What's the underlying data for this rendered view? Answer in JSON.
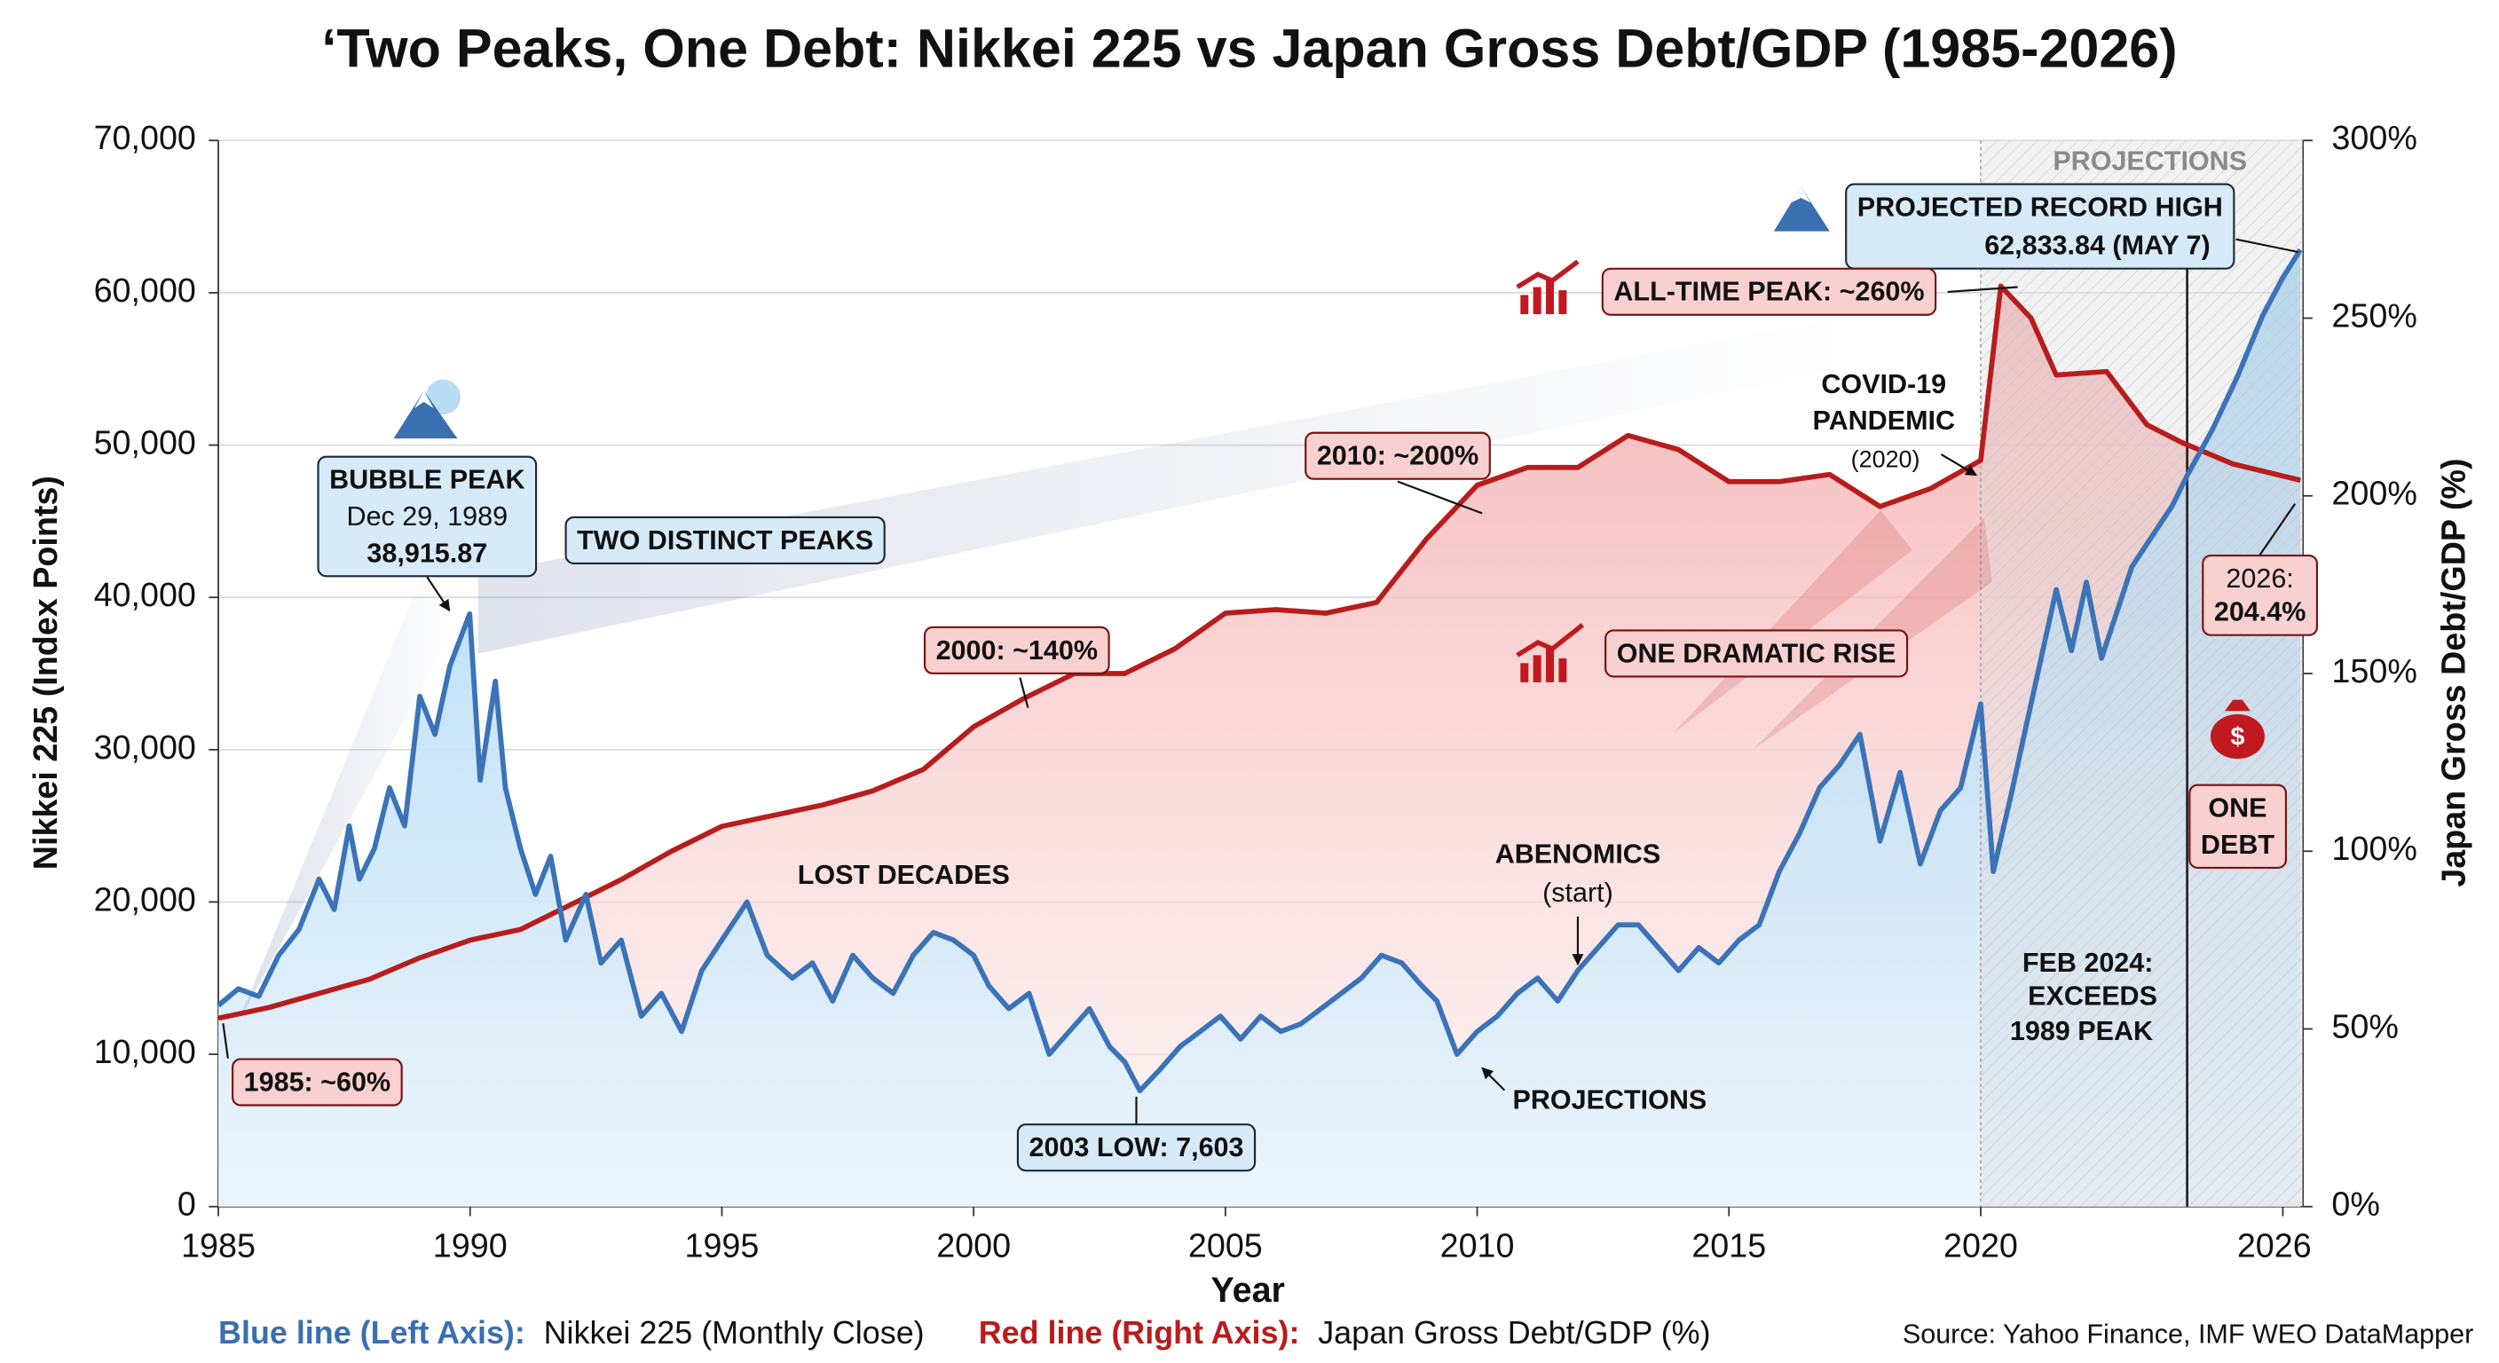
{
  "chart_data": {
    "type": "line",
    "title": "‘Two Peaks, One Debt: Nikkei 225 vs Japan Gross Debt/GDP (1985-2026)",
    "x_label": "Year",
    "y_label": "Nikkei 225 (Index Points)",
    "y2_label": "Japan Gross Debt/GDP (%)",
    "source": "Source: Yahoo Finance, IMF WEO DataMapper",
    "xlim": [
      1985,
      2026.4
    ],
    "xticks": [
      1985,
      1990,
      1995,
      2000,
      2005,
      2010,
      2015,
      2020,
      2026
    ],
    "ylim": [
      0,
      70000
    ],
    "yticks": [
      0,
      {
        "value": 10000,
        "label": "10,000"
      },
      {
        "value": 20000,
        "label": "20,000"
      },
      {
        "value": 30000,
        "label": "30,000"
      },
      {
        "value": 40000,
        "label": "40,000"
      },
      {
        "value": 50000,
        "label": "50,000"
      },
      {
        "value": 60000,
        "label": "60,000"
      },
      {
        "value": 70000,
        "label": "70,000"
      }
    ],
    "y2lim": [
      0,
      300
    ],
    "y2ticks": [
      {
        "value": 0,
        "label": "0%"
      },
      {
        "value": 50,
        "label": "50%"
      },
      {
        "value": 100,
        "label": "100%"
      },
      {
        "value": 150,
        "label": "150%"
      },
      {
        "value": 200,
        "label": "200%"
      },
      {
        "value": 250,
        "label": "250%"
      },
      {
        "value": 300,
        "label": "300%"
      }
    ],
    "grid": true,
    "shaded_xrange": [
      2020,
      2026.4
    ],
    "marker_x": 2024.1,
    "series": [
      {
        "name": "Nikkei 225 (Monthly Close)",
        "legend_label": "Blue line (Left Axis):",
        "color": "#3a73b8",
        "axis": "y",
        "x": [
          1985.0,
          1985.4,
          1985.8,
          1986.2,
          1986.6,
          1987.0,
          1987.3,
          1987.6,
          1987.8,
          1988.1,
          1988.4,
          1988.7,
          1989.0,
          1989.3,
          1989.6,
          1989.99,
          1990.2,
          1990.5,
          1990.7,
          1991.0,
          1991.3,
          1991.6,
          1991.9,
          1992.3,
          1992.6,
          1993.0,
          1993.4,
          1993.8,
          1994.2,
          1994.6,
          1995.0,
          1995.5,
          1995.9,
          1996.4,
          1996.8,
          1997.2,
          1997.6,
          1998.0,
          1998.4,
          1998.8,
          1999.2,
          1999.6,
          2000.0,
          2000.3,
          2000.7,
          2001.1,
          2001.5,
          2001.9,
          2002.3,
          2002.7,
          2003.0,
          2003.3,
          2003.7,
          2004.1,
          2004.5,
          2004.9,
          2005.3,
          2005.7,
          2006.1,
          2006.5,
          2006.9,
          2007.3,
          2007.7,
          2008.1,
          2008.5,
          2008.9,
          2009.2,
          2009.6,
          2010.0,
          2010.4,
          2010.8,
          2011.2,
          2011.6,
          2012.0,
          2012.4,
          2012.8,
          2013.2,
          2013.6,
          2014.0,
          2014.4,
          2014.8,
          2015.2,
          2015.6,
          2016.0,
          2016.4,
          2016.8,
          2017.2,
          2017.6,
          2018.0,
          2018.4,
          2018.8,
          2019.2,
          2019.6,
          2020.0,
          2020.25,
          2020.6,
          2020.9,
          2021.2,
          2021.5,
          2021.8,
          2022.1,
          2022.4,
          2022.7,
          2023.0,
          2023.4,
          2023.8,
          2024.1,
          2024.6,
          2025.1,
          2025.6,
          2026.0,
          2026.35
        ],
        "values": [
          13200,
          14300,
          13800,
          16500,
          18200,
          21500,
          19500,
          25000,
          21500,
          23500,
          27500,
          25000,
          33500,
          31000,
          35500,
          38915.87,
          28000,
          34500,
          27500,
          23500,
          20500,
          23000,
          17500,
          20500,
          16000,
          17500,
          12500,
          14000,
          11500,
          15500,
          17500,
          20000,
          16500,
          15000,
          16000,
          13500,
          16500,
          15000,
          14000,
          16500,
          18000,
          17500,
          16500,
          14500,
          13000,
          14000,
          10000,
          11500,
          13000,
          10500,
          9500,
          7603,
          9000,
          10500,
          11500,
          12500,
          11000,
          12500,
          11500,
          12000,
          13000,
          14000,
          15000,
          16500,
          16000,
          14500,
          13500,
          10000,
          11500,
          12500,
          14000,
          15000,
          13500,
          15500,
          17000,
          18500,
          18500,
          17000,
          15500,
          17000,
          16000,
          17500,
          18500,
          22000,
          24500,
          27500,
          29000,
          31000,
          24000,
          28500,
          22500,
          26000,
          27500,
          33000,
          22000,
          27000,
          31500,
          36000,
          40500,
          36500,
          41000,
          36000,
          39000,
          42000,
          44000,
          46000,
          48000,
          51000,
          54500,
          58500,
          61000,
          62833.84
        ]
      },
      {
        "name": "Japan Gross Debt/GDP (%)",
        "legend_label": "Red line (Right Axis):",
        "color": "#b81c1c",
        "axis": "y2",
        "x": [
          1985,
          1986,
          1987,
          1988,
          1989,
          1990,
          1991,
          1992,
          1993,
          1994,
          1995,
          1996,
          1997,
          1998,
          1999,
          2000,
          2001,
          2002,
          2003,
          2004,
          2005,
          2006,
          2007,
          2008,
          2009,
          2010,
          2011,
          2012,
          2013,
          2014,
          2015,
          2016,
          2017,
          2018,
          2019,
          2020.0,
          2020.4,
          2021.0,
          2021.5,
          2022.5,
          2023.3,
          2024.0,
          2025.0,
          2026.35
        ],
        "values": [
          53,
          56,
          60,
          64,
          70,
          75,
          78,
          85,
          92,
          100,
          107,
          110,
          113,
          117,
          123,
          135,
          143,
          150,
          150,
          157,
          167,
          168,
          167,
          170,
          188,
          203,
          208,
          208,
          217,
          213,
          204,
          204,
          206,
          197,
          202,
          210,
          259,
          250,
          234,
          235,
          220,
          215,
          209,
          204.4
        ]
      }
    ],
    "annotations": [
      {
        "text": "BUBBLE PEAK"
      },
      {
        "text": "Dec 29, 1989"
      },
      {
        "text": "38,915.87"
      },
      {
        "text": "TWO DISTINCT PEAKS"
      },
      {
        "text": "1985: ~60%"
      },
      {
        "text": "2000: ~140%"
      },
      {
        "text": "2010: ~200%"
      },
      {
        "text": "ALL-TIME PEAK: ~260%"
      },
      {
        "text": "COVID-19"
      },
      {
        "text": "PANDEMIC"
      },
      {
        "text": "(2020)"
      },
      {
        "text": "ONE DRAMATIC RISE"
      },
      {
        "text": "LOST DECADES"
      },
      {
        "text": "ABENOMICS"
      },
      {
        "text": "(start)"
      },
      {
        "text": "PROJECTIONS"
      },
      {
        "text": "2003 LOW: 7,603"
      },
      {
        "text": "PROJECTIONS"
      },
      {
        "text": "PROJECTED RECORD HIGH"
      },
      {
        "text": "62,833.84 (MAY 7)"
      },
      {
        "text": "FEB 2024:"
      },
      {
        "text": "EXCEEDS"
      },
      {
        "text": "1989 PEAK"
      },
      {
        "text": "2026:"
      },
      {
        "text": "204.4%"
      },
      {
        "text": "ONE"
      },
      {
        "text": "DEBT"
      }
    ]
  }
}
